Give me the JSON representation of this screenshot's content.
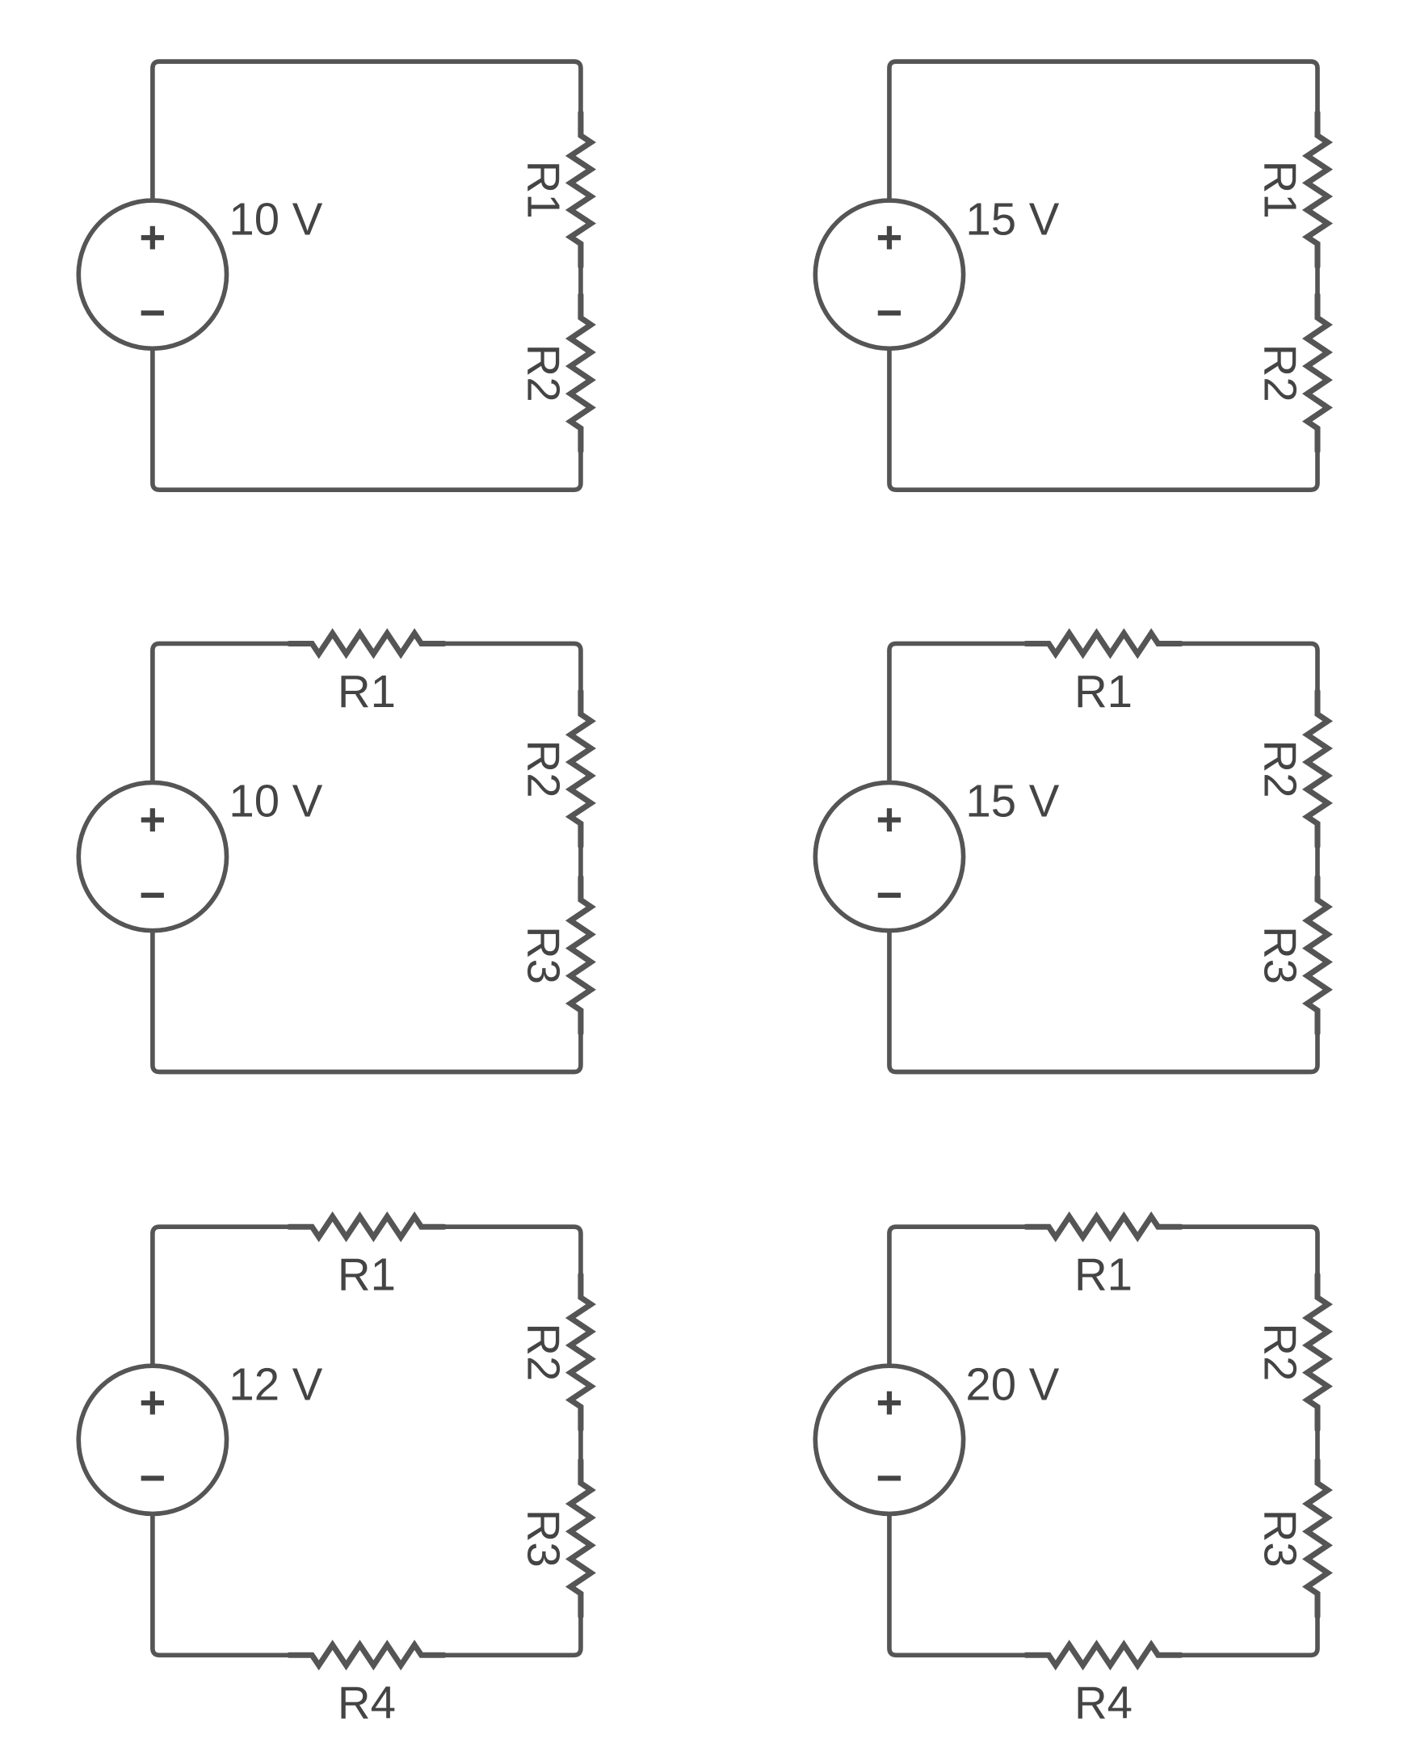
{
  "colors": {
    "stroke": "#555555",
    "text": "#444444",
    "background": "#ffffff"
  },
  "symbols": {
    "plus": "+",
    "minus": "−"
  },
  "circuits": [
    {
      "source": {
        "label": "10 V"
      },
      "resistors": [
        {
          "label": "R1",
          "side": "right"
        },
        {
          "label": "R2",
          "side": "right"
        }
      ]
    },
    {
      "source": {
        "label": "15 V"
      },
      "resistors": [
        {
          "label": "R1",
          "side": "right"
        },
        {
          "label": "R2",
          "side": "right"
        }
      ]
    },
    {
      "source": {
        "label": "10 V"
      },
      "resistors": [
        {
          "label": "R1",
          "side": "top"
        },
        {
          "label": "R2",
          "side": "right"
        },
        {
          "label": "R3",
          "side": "right"
        }
      ]
    },
    {
      "source": {
        "label": "15 V"
      },
      "resistors": [
        {
          "label": "R1",
          "side": "top"
        },
        {
          "label": "R2",
          "side": "right"
        },
        {
          "label": "R3",
          "side": "right"
        }
      ]
    },
    {
      "source": {
        "label": "12 V"
      },
      "resistors": [
        {
          "label": "R1",
          "side": "top"
        },
        {
          "label": "R2",
          "side": "right"
        },
        {
          "label": "R3",
          "side": "right"
        },
        {
          "label": "R4",
          "side": "bottom"
        }
      ]
    },
    {
      "source": {
        "label": "20 V"
      },
      "resistors": [
        {
          "label": "R1",
          "side": "top"
        },
        {
          "label": "R2",
          "side": "right"
        },
        {
          "label": "R3",
          "side": "right"
        },
        {
          "label": "R4",
          "side": "bottom"
        }
      ]
    }
  ]
}
